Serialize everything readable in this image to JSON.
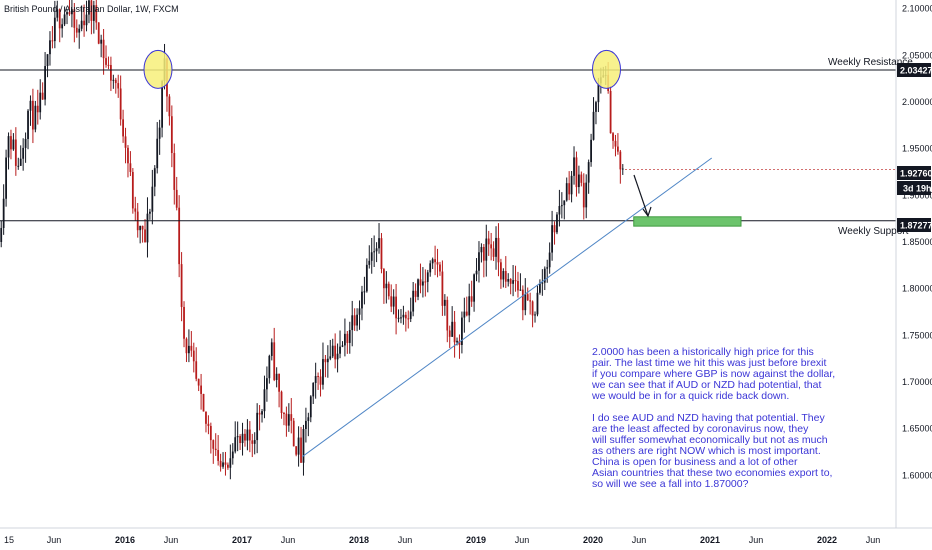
{
  "chart_data": {
    "type": "candlestick",
    "title": "British Pound / Australian Dollar, 1W, FXCM",
    "y_ticks": [
      "2.10000",
      "2.05000",
      "2.00000",
      "1.95000",
      "1.90000",
      "1.85000",
      "1.80000",
      "1.75000",
      "1.70000",
      "1.65000",
      "1.60000"
    ],
    "x_ticks": [
      "15",
      "Jun",
      "2016",
      "Jun",
      "2017",
      "Jun",
      "2018",
      "Jun",
      "2019",
      "Jun",
      "2020",
      "Jun",
      "2021",
      "Jun",
      "2022",
      "Jun"
    ],
    "ylim": [
      1.565,
      2.105
    ],
    "current_price": {
      "value": "1.92760",
      "countdown": "3d 19h"
    },
    "levels": [
      {
        "name": "Weekly Resistance",
        "value": 2.03427,
        "label": "2.03427"
      },
      {
        "name": "Weekly Support",
        "value": 1.87277,
        "label": "1.87277"
      }
    ],
    "trendline": {
      "start": {
        "date": "2017-08",
        "price": 1.62
      },
      "end": {
        "date": "2021-02",
        "price": 1.94
      }
    },
    "support_zone": {
      "from_date": "2020-06",
      "to_date": "2021-05",
      "price_low": 1.867,
      "price_high": 1.877
    },
    "highlights": [
      {
        "date": "2016-05",
        "price": 2.035
      },
      {
        "date": "2020-03",
        "price": 2.035
      }
    ],
    "price_path": [
      [
        "2015-01",
        1.85
      ],
      [
        "2015-02",
        1.97
      ],
      [
        "2015-03",
        1.93
      ],
      [
        "2015-04",
        1.99
      ],
      [
        "2015-05",
        1.98
      ],
      [
        "2015-06",
        2.04
      ],
      [
        "2015-07",
        2.09
      ],
      [
        "2015-08",
        2.1
      ],
      [
        "2015-09",
        2.07
      ],
      [
        "2015-10",
        2.1
      ],
      [
        "2015-11",
        2.09
      ],
      [
        "2015-12",
        2.04
      ],
      [
        "2016-01",
        2.02
      ],
      [
        "2016-02",
        1.96
      ],
      [
        "2016-03",
        1.87
      ],
      [
        "2016-04",
        1.85
      ],
      [
        "2016-05",
        1.93
      ],
      [
        "2016-06",
        2.04
      ],
      [
        "2016-07",
        1.92
      ],
      [
        "2016-08",
        1.75
      ],
      [
        "2016-09",
        1.71
      ],
      [
        "2016-10",
        1.66
      ],
      [
        "2016-11",
        1.64
      ],
      [
        "2016-12",
        1.6
      ],
      [
        "2017-01",
        1.64
      ],
      [
        "2017-02",
        1.63
      ],
      [
        "2017-03",
        1.64
      ],
      [
        "2017-04",
        1.68
      ],
      [
        "2017-05",
        1.73
      ],
      [
        "2017-06",
        1.67
      ],
      [
        "2017-07",
        1.65
      ],
      [
        "2017-08",
        1.62
      ],
      [
        "2017-09",
        1.68
      ],
      [
        "2017-10",
        1.71
      ],
      [
        "2017-11",
        1.74
      ],
      [
        "2017-12",
        1.73
      ],
      [
        "2018-01",
        1.76
      ],
      [
        "2018-02",
        1.79
      ],
      [
        "2018-03",
        1.83
      ],
      [
        "2018-04",
        1.84
      ],
      [
        "2018-05",
        1.79
      ],
      [
        "2018-06",
        1.77
      ],
      [
        "2018-07",
        1.78
      ],
      [
        "2018-08",
        1.8
      ],
      [
        "2018-09",
        1.81
      ],
      [
        "2018-10",
        1.83
      ],
      [
        "2018-11",
        1.76
      ],
      [
        "2018-12",
        1.74
      ],
      [
        "2019-01",
        1.78
      ],
      [
        "2019-02",
        1.82
      ],
      [
        "2019-03",
        1.85
      ],
      [
        "2019-04",
        1.84
      ],
      [
        "2019-05",
        1.8
      ],
      [
        "2019-06",
        1.81
      ],
      [
        "2019-07",
        1.78
      ],
      [
        "2019-08",
        1.78
      ],
      [
        "2019-09",
        1.82
      ],
      [
        "2019-10",
        1.87
      ],
      [
        "2019-11",
        1.9
      ],
      [
        "2019-12",
        1.93
      ],
      [
        "2020-01",
        1.9
      ],
      [
        "2020-02",
        1.98
      ],
      [
        "2020-03",
        2.04
      ],
      [
        "2020-04",
        1.96
      ],
      [
        "2020-05",
        1.92
      ]
    ]
  },
  "annotations": {
    "resistance_label": "Weekly Resistance",
    "support_label": "Weekly Support",
    "note_lines": [
      "2.0000 has been a historically high price for this",
      "pair. The last time we hit this was just before brexit",
      "if you compare where GBP is now against the dollar,",
      "we can see that if AUD or NZD had potential, that",
      "we would be in for a quick ride back down.",
      "",
      "I do see AUD and NZD having that potential. They",
      "are the least affected by coronavirus now, they",
      "will suffer somewhat economically but not as much",
      "as others are right NOW which is most important.",
      "China is open for business and a lot of other",
      "Asian countries that these two economies export to,",
      "so will we see a fall into 1.87000?"
    ]
  },
  "colors": {
    "up": "#131722",
    "down": "#b71c1c",
    "level_line": "#131722",
    "trendline": "#4f86c6",
    "zone": "#6cc46c",
    "highlight": "#f7f07a",
    "highlight_border": "#3b35d6",
    "note": "#3b35d6",
    "badge_bg": "#131722"
  }
}
